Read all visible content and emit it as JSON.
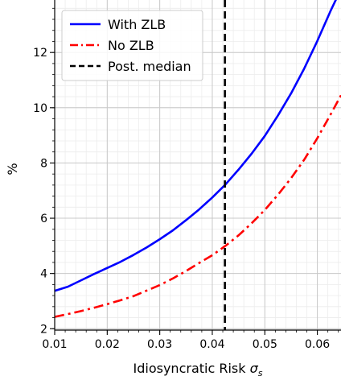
{
  "chart_data": {
    "type": "line",
    "title": "",
    "xlabel": "Idiosyncratic Risk",
    "xlabel_symbol": "σ",
    "xlabel_subscript": "s",
    "ylabel": "%",
    "xlim": [
      0.01,
      0.0645
    ],
    "ylim": [
      1.95,
      13.9
    ],
    "x_ticks": [
      {
        "value": 0.01,
        "label": "0.01"
      },
      {
        "value": 0.02,
        "label": "0.02"
      },
      {
        "value": 0.03,
        "label": "0.03"
      },
      {
        "value": 0.04,
        "label": "0.04"
      },
      {
        "value": 0.05,
        "label": "0.05"
      },
      {
        "value": 0.06,
        "label": "0.06"
      }
    ],
    "y_ticks": [
      {
        "value": 2,
        "label": "2"
      },
      {
        "value": 4,
        "label": "4"
      },
      {
        "value": 6,
        "label": "6"
      },
      {
        "value": 8,
        "label": "8"
      },
      {
        "value": 10,
        "label": "10"
      },
      {
        "value": 12,
        "label": "12"
      }
    ],
    "grid": true,
    "minor_grid": true,
    "legend_position": "top-left",
    "series": [
      {
        "name": "With ZLB",
        "color": "#0000ff",
        "style": "solid",
        "x": [
          0.01,
          0.0125,
          0.015,
          0.0175,
          0.02,
          0.0225,
          0.025,
          0.0275,
          0.03,
          0.0325,
          0.035,
          0.0375,
          0.04,
          0.0425,
          0.045,
          0.0475,
          0.05,
          0.0525,
          0.055,
          0.0575,
          0.06,
          0.0625,
          0.0645
        ],
        "y": [
          3.37,
          3.52,
          3.75,
          3.98,
          4.2,
          4.42,
          4.67,
          4.94,
          5.24,
          5.56,
          5.93,
          6.32,
          6.75,
          7.22,
          7.76,
          8.34,
          8.98,
          9.72,
          10.52,
          11.42,
          12.42,
          13.5,
          14.3
        ]
      },
      {
        "name": "No ZLB",
        "color": "#ff0000",
        "style": "dashdot",
        "x": [
          0.01,
          0.0125,
          0.015,
          0.0175,
          0.02,
          0.0225,
          0.025,
          0.0275,
          0.03,
          0.0325,
          0.035,
          0.0375,
          0.04,
          0.0425,
          0.045,
          0.0475,
          0.05,
          0.0525,
          0.055,
          0.0575,
          0.06,
          0.0625,
          0.0645
        ],
        "y": [
          2.43,
          2.53,
          2.64,
          2.76,
          2.89,
          3.03,
          3.18,
          3.38,
          3.58,
          3.82,
          4.09,
          4.38,
          4.66,
          5.0,
          5.38,
          5.82,
          6.3,
          6.85,
          7.45,
          8.12,
          8.9,
          9.75,
          10.45
        ]
      },
      {
        "name": "Post. median",
        "color": "#000000",
        "style": "dashed",
        "vline_x": 0.0424
      }
    ]
  }
}
